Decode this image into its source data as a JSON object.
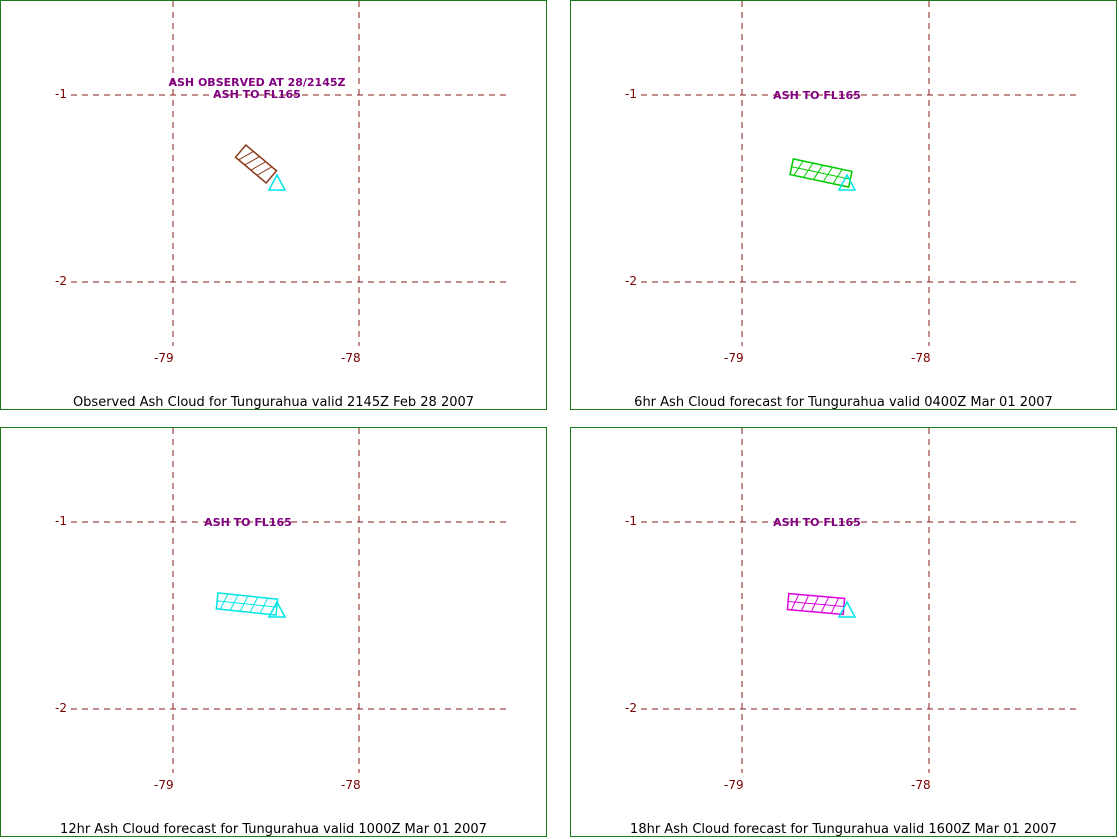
{
  "colors": {
    "grid": "#8b1a1a",
    "border": "#1a7a1a",
    "annotation": "#800080",
    "volcano": "#00e5e5",
    "observed_ash": "#8b3a1a",
    "fcst_6hr": "#00cc00",
    "fcst_12hr": "#00e5e5",
    "fcst_18hr": "#e000e0"
  },
  "axes": {
    "latitudes": [
      "-1",
      "-2"
    ],
    "longitudes": [
      "-79",
      "-78"
    ]
  },
  "panels": [
    {
      "caption": "Observed Ash Cloud for Tungurahua valid 2145Z Feb 28 2007",
      "annotation_lines": [
        "ASH OBSERVED AT 28/2145Z",
        "ASH TO FL165"
      ],
      "ash_color_key": "observed_ash"
    },
    {
      "caption": "6hr Ash Cloud forecast for Tungurahua valid 0400Z Mar 01 2007",
      "annotation_lines": [
        "ASH TO FL165"
      ],
      "ash_color_key": "fcst_6hr"
    },
    {
      "caption": "12hr Ash Cloud forecast for Tungurahua valid 1000Z Mar 01 2007",
      "annotation_lines": [
        "ASH TO FL165"
      ],
      "ash_color_key": "fcst_12hr"
    },
    {
      "caption": "18hr Ash Cloud forecast for Tungurahua valid 1600Z Mar 01 2007",
      "annotation_lines": [
        "ASH TO FL165"
      ],
      "ash_color_key": "fcst_18hr"
    }
  ]
}
